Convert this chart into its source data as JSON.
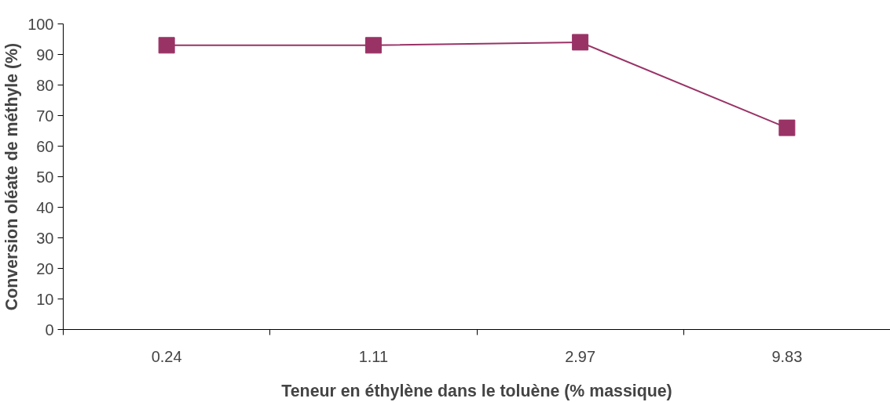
{
  "chart_data": {
    "type": "line",
    "xlabel": "Teneur en éthylène dans le toluène (% massique)",
    "ylabel": "Conversion oléate de méthyle (%)",
    "categories": [
      "0.24",
      "1.11",
      "2.97",
      "9.83"
    ],
    "series": [
      {
        "color": "#993366",
        "values": [
          93,
          93,
          94,
          66
        ]
      }
    ],
    "ylim": [
      0,
      100
    ],
    "yticks": [
      0,
      10,
      20,
      30,
      40,
      50,
      60,
      70,
      80,
      90,
      100
    ],
    "grid": false,
    "marker": "square",
    "line_style": "solid"
  }
}
